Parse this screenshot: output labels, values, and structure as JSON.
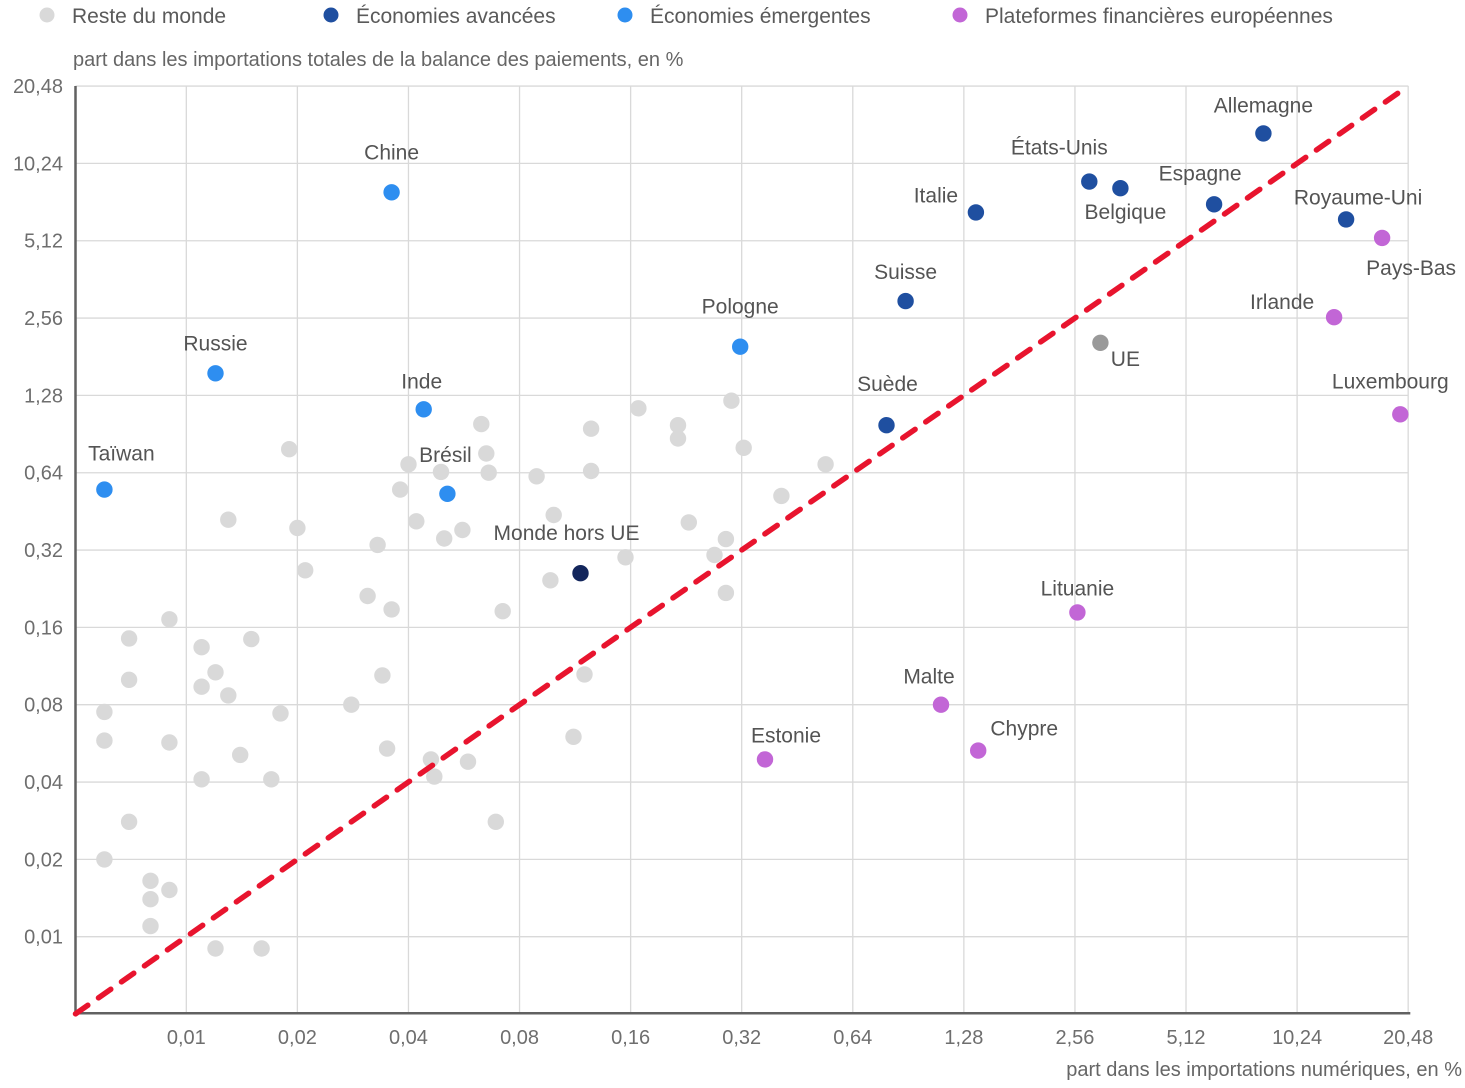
{
  "legend": {
    "items": [
      {
        "label": "Reste du monde",
        "color": "#d9d9d9"
      },
      {
        "label": "Économies avancées",
        "color": "#1f4fa0"
      },
      {
        "label": "Économies émergentes",
        "color": "#2e8ef0"
      },
      {
        "label": "Plateformes financières européennes",
        "color": "#c266d6"
      }
    ]
  },
  "chart_data": {
    "type": "scatter",
    "x_scale": "log2",
    "y_scale": "log2",
    "xlabel": "part dans les importations numériques, en %",
    "ylabel": "part dans les importations totales de la balance des paiements, en %",
    "x_range": [
      0.005,
      20.48
    ],
    "y_range": [
      0.005,
      20.48
    ],
    "grid": true,
    "tick_values": [
      0.01,
      0.02,
      0.04,
      0.08,
      0.16,
      0.32,
      0.64,
      1.28,
      2.56,
      5.12,
      10.24,
      20.48
    ],
    "tick_labels": [
      "0,01",
      "0,02",
      "0,04",
      "0,08",
      "0,16",
      "0,32",
      "0,64",
      "1,28",
      "2,56",
      "5,12",
      "10,24",
      "20,48"
    ],
    "identity_line": {
      "meaning": "y = x",
      "style": "dashed",
      "color": "#e8142e"
    },
    "series": [
      {
        "id": "reste",
        "name": "Reste du monde",
        "color": "#d9d9d9",
        "points": [
          [
            0.006,
            0.075
          ],
          [
            0.006,
            0.058
          ],
          [
            0.006,
            0.02
          ],
          [
            0.007,
            0.145
          ],
          [
            0.007,
            0.1
          ],
          [
            0.007,
            0.028
          ],
          [
            0.008,
            0.0165
          ],
          [
            0.008,
            0.014
          ],
          [
            0.008,
            0.011
          ],
          [
            0.009,
            0.172
          ],
          [
            0.009,
            0.057
          ],
          [
            0.009,
            0.0152
          ],
          [
            0.011,
            0.134
          ],
          [
            0.011,
            0.094
          ],
          [
            0.011,
            0.041
          ],
          [
            0.012,
            0.107
          ],
          [
            0.012,
            0.009
          ],
          [
            0.013,
            0.42
          ],
          [
            0.013,
            0.087
          ],
          [
            0.014,
            0.051
          ],
          [
            0.015,
            0.144
          ],
          [
            0.016,
            0.009
          ],
          [
            0.017,
            0.041
          ],
          [
            0.018,
            0.074
          ],
          [
            0.019,
            0.79
          ],
          [
            0.02,
            0.39
          ],
          [
            0.021,
            0.267
          ],
          [
            0.028,
            0.08
          ],
          [
            0.031,
            0.212
          ],
          [
            0.033,
            0.335
          ],
          [
            0.034,
            0.104
          ],
          [
            0.035,
            0.054
          ],
          [
            0.036,
            0.188
          ],
          [
            0.038,
            0.55
          ],
          [
            0.04,
            0.69
          ],
          [
            0.042,
            0.414
          ],
          [
            0.046,
            0.049
          ],
          [
            0.047,
            0.042
          ],
          [
            0.049,
            0.645
          ],
          [
            0.05,
            0.355
          ],
          [
            0.056,
            0.383
          ],
          [
            0.058,
            0.048
          ],
          [
            0.063,
            0.99
          ],
          [
            0.065,
            0.76
          ],
          [
            0.066,
            0.64
          ],
          [
            0.069,
            0.028
          ],
          [
            0.072,
            0.185
          ],
          [
            0.089,
            0.62
          ],
          [
            0.097,
            0.244
          ],
          [
            0.099,
            0.438
          ],
          [
            0.112,
            0.06
          ],
          [
            0.12,
            0.105
          ],
          [
            0.125,
            0.95
          ],
          [
            0.125,
            0.65
          ],
          [
            0.155,
            0.3
          ],
          [
            0.168,
            1.14
          ],
          [
            0.215,
            0.98
          ],
          [
            0.215,
            0.87
          ],
          [
            0.23,
            0.41
          ],
          [
            0.27,
            0.306
          ],
          [
            0.29,
            0.353
          ],
          [
            0.29,
            0.218
          ],
          [
            0.3,
            1.22
          ],
          [
            0.324,
            0.8
          ],
          [
            0.41,
            0.52
          ],
          [
            0.54,
            0.69
          ]
        ]
      },
      {
        "id": "avancees",
        "name": "Économies avancées",
        "color": "#1f4fa0",
        "points": [
          {
            "label": "Suède",
            "x": 0.79,
            "y": 0.98,
            "dx": 1,
            "dy": -41
          },
          {
            "label": "Suisse",
            "x": 0.89,
            "y": 2.98,
            "dx": 0,
            "dy": -29
          },
          {
            "label": "Italie",
            "x": 1.38,
            "y": 6.6,
            "dx": -40,
            "dy": -17
          },
          {
            "label": "États-Unis",
            "x": 2.8,
            "y": 8.7,
            "dx": -30,
            "dy": -34
          },
          {
            "label": "Belgique",
            "x": 3.4,
            "y": 8.2,
            "dx": 5,
            "dy": 24
          },
          {
            "label": "Espagne",
            "x": 6.1,
            "y": 7.1,
            "dx": -14,
            "dy": -31
          },
          {
            "label": "Allemagne",
            "x": 8.3,
            "y": 13.4,
            "dx": 0,
            "dy": -28
          },
          {
            "label": "Royaume-Uni",
            "x": 13.9,
            "y": 6.2,
            "dx": 12,
            "dy": -22
          }
        ]
      },
      {
        "id": "emergentes",
        "name": "Économies émergentes",
        "color": "#2e8ef0",
        "points": [
          {
            "label": "Taïwan",
            "x": 0.006,
            "y": 0.55,
            "dx": 17,
            "dy": -36
          },
          {
            "label": "Russie",
            "x": 0.012,
            "y": 1.56,
            "dx": 0,
            "dy": -30
          },
          {
            "label": "Chine",
            "x": 0.036,
            "y": 7.9,
            "dx": 0,
            "dy": -40
          },
          {
            "label": "Inde",
            "x": 0.044,
            "y": 1.13,
            "dx": -2,
            "dy": -28
          },
          {
            "label": "Brésil",
            "x": 0.051,
            "y": 0.53,
            "dx": -2,
            "dy": -39
          },
          {
            "label": "Pologne",
            "x": 0.317,
            "y": 1.98,
            "dx": 0,
            "dy": -40
          }
        ]
      },
      {
        "id": "plateformes",
        "name": "Plateformes financières européennes",
        "color": "#c266d6",
        "points": [
          {
            "label": "Estonie",
            "x": 0.37,
            "y": 0.049,
            "dx": 21,
            "dy": -24
          },
          {
            "label": "Malte",
            "x": 1.11,
            "y": 0.08,
            "dx": -12,
            "dy": -28
          },
          {
            "label": "Chypre",
            "x": 1.4,
            "y": 0.053,
            "dx": 46,
            "dy": -22
          },
          {
            "label": "Lituanie",
            "x": 2.6,
            "y": 0.183,
            "dx": 0,
            "dy": -24
          },
          {
            "label": "Irlande",
            "x": 12.9,
            "y": 2.58,
            "dx": -52,
            "dy": -15
          },
          {
            "label": "Pays-Bas",
            "x": 17.4,
            "y": 5.25,
            "dx": 29,
            "dy": 30
          },
          {
            "label": "Luxembourg",
            "x": 19.5,
            "y": 1.08,
            "dx": -10,
            "dy": -33
          }
        ]
      },
      {
        "id": "ue",
        "name": "UE",
        "color": "#999999",
        "points": [
          {
            "label": "UE",
            "x": 3.0,
            "y": 2.05,
            "dx": 25,
            "dy": 16
          }
        ]
      },
      {
        "id": "monde-hors-ue",
        "name": "Monde hors UE",
        "color": "#13265c",
        "points": [
          {
            "label": "Monde hors UE",
            "x": 0.117,
            "y": 0.26,
            "dx": -14,
            "dy": -40
          }
        ]
      }
    ]
  }
}
